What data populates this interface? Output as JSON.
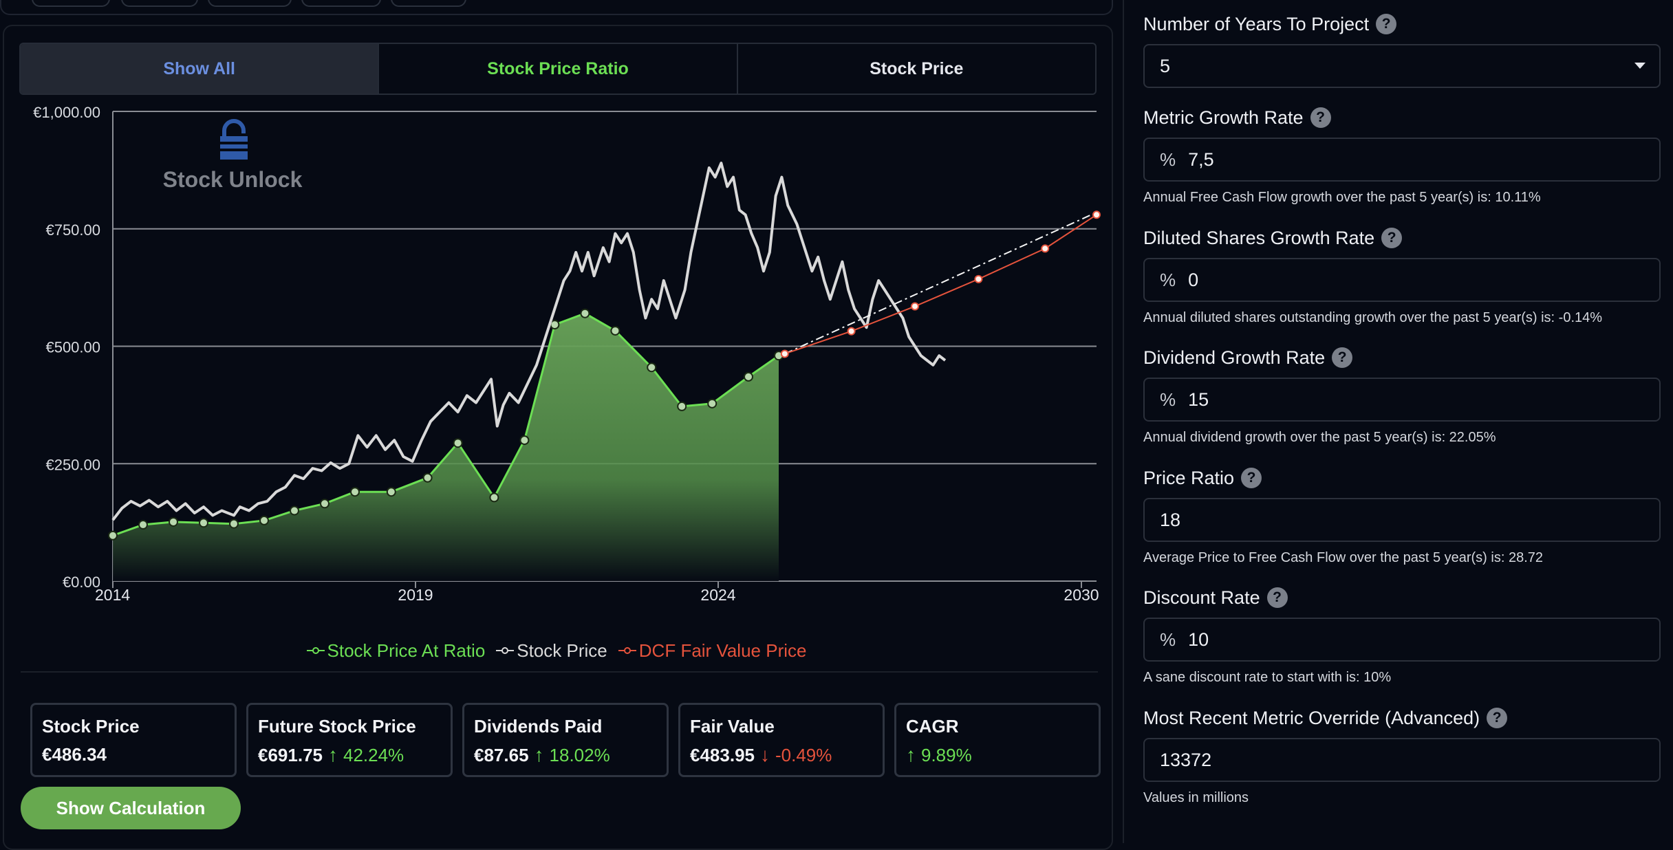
{
  "tabs": [
    {
      "label": "Show All",
      "color": "#6b8fe0"
    },
    {
      "label": "Stock Price Ratio",
      "color": "#6cdf54"
    },
    {
      "label": "Stock Price",
      "color": "#e6e8ee"
    }
  ],
  "logo": {
    "text": "Stock Unlock"
  },
  "legend": [
    {
      "label": "Stock Price At Ratio",
      "color": "#6cdf54"
    },
    {
      "label": "Stock Price",
      "color": "#d9d9d9"
    },
    {
      "label": "DCF Fair Value Price",
      "color": "#e5533c"
    }
  ],
  "chart_data": {
    "type": "line",
    "x_ticks": [
      2014,
      2019,
      2024,
      2030
    ],
    "xlim": [
      2014,
      2030.25
    ],
    "y_ticks": [
      "€0.00",
      "€250.00",
      "€500.00",
      "€750.00",
      "€1,000.00"
    ],
    "y_tick_values": [
      0,
      250,
      500,
      750,
      1000
    ],
    "ylim": [
      0,
      1000
    ],
    "grid": "horizontal",
    "legend_position": "bottom",
    "series": [
      {
        "name": "Stock Price At Ratio",
        "type": "area",
        "color": "#6cdf54",
        "points": [
          [
            2014.0,
            97
          ],
          [
            2014.5,
            120
          ],
          [
            2015.0,
            126
          ],
          [
            2015.5,
            124
          ],
          [
            2016.0,
            122
          ],
          [
            2016.5,
            129
          ],
          [
            2017.0,
            150
          ],
          [
            2017.5,
            165
          ],
          [
            2018.0,
            190
          ],
          [
            2018.6,
            190
          ],
          [
            2019.2,
            220
          ],
          [
            2019.7,
            294
          ],
          [
            2020.3,
            178
          ],
          [
            2020.8,
            300
          ],
          [
            2021.3,
            546
          ],
          [
            2021.8,
            570
          ],
          [
            2022.3,
            533
          ],
          [
            2022.9,
            455
          ],
          [
            2023.4,
            372
          ],
          [
            2023.9,
            378
          ],
          [
            2024.5,
            435
          ],
          [
            2025.0,
            480
          ]
        ]
      },
      {
        "name": "Stock Price",
        "type": "line",
        "color": "#d9d9d9",
        "points": [
          [
            2014.0,
            130
          ],
          [
            2014.15,
            155
          ],
          [
            2014.3,
            170
          ],
          [
            2014.45,
            160
          ],
          [
            2014.6,
            172
          ],
          [
            2014.75,
            158
          ],
          [
            2014.9,
            170
          ],
          [
            2015.05,
            150
          ],
          [
            2015.2,
            165
          ],
          [
            2015.35,
            145
          ],
          [
            2015.5,
            158
          ],
          [
            2015.65,
            140
          ],
          [
            2015.8,
            150
          ],
          [
            2016.0,
            140
          ],
          [
            2016.1,
            158
          ],
          [
            2016.25,
            150
          ],
          [
            2016.4,
            165
          ],
          [
            2016.55,
            170
          ],
          [
            2016.7,
            190
          ],
          [
            2016.85,
            200
          ],
          [
            2017.0,
            225
          ],
          [
            2017.15,
            218
          ],
          [
            2017.3,
            240
          ],
          [
            2017.45,
            235
          ],
          [
            2017.6,
            252
          ],
          [
            2017.75,
            240
          ],
          [
            2017.9,
            250
          ],
          [
            2018.05,
            310
          ],
          [
            2018.2,
            285
          ],
          [
            2018.35,
            310
          ],
          [
            2018.5,
            280
          ],
          [
            2018.65,
            300
          ],
          [
            2018.8,
            265
          ],
          [
            2018.95,
            255
          ],
          [
            2019.1,
            300
          ],
          [
            2019.25,
            340
          ],
          [
            2019.4,
            360
          ],
          [
            2019.55,
            380
          ],
          [
            2019.7,
            360
          ],
          [
            2019.85,
            395
          ],
          [
            2020.0,
            380
          ],
          [
            2020.15,
            410
          ],
          [
            2020.25,
            430
          ],
          [
            2020.35,
            330
          ],
          [
            2020.45,
            375
          ],
          [
            2020.55,
            400
          ],
          [
            2020.7,
            380
          ],
          [
            2020.85,
            420
          ],
          [
            2021.0,
            460
          ],
          [
            2021.15,
            520
          ],
          [
            2021.3,
            580
          ],
          [
            2021.45,
            640
          ],
          [
            2021.55,
            660
          ],
          [
            2021.65,
            700
          ],
          [
            2021.75,
            660
          ],
          [
            2021.85,
            700
          ],
          [
            2021.95,
            650
          ],
          [
            2022.1,
            710
          ],
          [
            2022.2,
            680
          ],
          [
            2022.3,
            740
          ],
          [
            2022.4,
            720
          ],
          [
            2022.5,
            740
          ],
          [
            2022.6,
            700
          ],
          [
            2022.7,
            620
          ],
          [
            2022.8,
            560
          ],
          [
            2022.9,
            600
          ],
          [
            2023.0,
            580
          ],
          [
            2023.1,
            640
          ],
          [
            2023.2,
            600
          ],
          [
            2023.3,
            560
          ],
          [
            2023.45,
            620
          ],
          [
            2023.55,
            700
          ],
          [
            2023.65,
            760
          ],
          [
            2023.75,
            820
          ],
          [
            2023.85,
            880
          ],
          [
            2023.95,
            860
          ],
          [
            2024.05,
            890
          ],
          [
            2024.15,
            840
          ],
          [
            2024.25,
            860
          ],
          [
            2024.35,
            790
          ],
          [
            2024.45,
            780
          ],
          [
            2024.55,
            740
          ],
          [
            2024.65,
            710
          ],
          [
            2024.75,
            660
          ],
          [
            2024.85,
            700
          ],
          [
            2024.95,
            820
          ],
          [
            2025.05,
            860
          ],
          [
            2025.15,
            800
          ],
          [
            2025.3,
            760
          ],
          [
            2025.45,
            700
          ],
          [
            2025.55,
            660
          ],
          [
            2025.65,
            690
          ],
          [
            2025.75,
            640
          ],
          [
            2025.85,
            600
          ],
          [
            2025.95,
            640
          ],
          [
            2026.05,
            680
          ],
          [
            2026.15,
            620
          ],
          [
            2026.25,
            580
          ],
          [
            2026.35,
            560
          ],
          [
            2026.45,
            540
          ],
          [
            2026.55,
            600
          ],
          [
            2026.65,
            640
          ],
          [
            2026.75,
            620
          ],
          [
            2026.85,
            600
          ],
          [
            2026.95,
            580
          ],
          [
            2027.05,
            560
          ],
          [
            2027.15,
            520
          ],
          [
            2027.25,
            500
          ],
          [
            2027.35,
            480
          ],
          [
            2027.45,
            470
          ],
          [
            2027.55,
            460
          ],
          [
            2027.65,
            480
          ],
          [
            2027.75,
            470
          ]
        ]
      },
      {
        "name": "DCF Fair Value Price",
        "type": "line",
        "color": "#e5533c",
        "points": [
          [
            2025.1,
            483.95
          ],
          [
            2026.2,
            532
          ],
          [
            2027.25,
            585
          ],
          [
            2028.3,
            643
          ],
          [
            2029.4,
            708
          ],
          [
            2030.25,
            780
          ]
        ]
      },
      {
        "name": "",
        "type": "dashdot",
        "color": "#f5f5f5",
        "points": [
          [
            2025.1,
            483.95
          ],
          [
            2030.25,
            785
          ]
        ]
      }
    ]
  },
  "cards": [
    {
      "title": "Stock Price",
      "value": "€486.34",
      "change": "",
      "direction": ""
    },
    {
      "title": "Future Stock Price",
      "value": "€691.75",
      "change": "42.24%",
      "direction": "up"
    },
    {
      "title": "Dividends Paid",
      "value": "€87.65",
      "change": "18.02%",
      "direction": "up"
    },
    {
      "title": "Fair Value",
      "value": "€483.95",
      "change": "-0.49%",
      "direction": "down"
    },
    {
      "title": "CAGR",
      "value": "",
      "change": "9.89%",
      "direction": "up"
    }
  ],
  "show_calculation_label": "Show Calculation",
  "fields": [
    {
      "label": "Number of Years To Project",
      "prefix": "",
      "value": "5",
      "hint": "",
      "type": "select"
    },
    {
      "label": "Metric Growth Rate",
      "prefix": "%",
      "value": "7,5",
      "hint": "Annual Free Cash Flow growth over the past 5 year(s) is: 10.11%",
      "type": "input"
    },
    {
      "label": "Diluted Shares Growth Rate",
      "prefix": "%",
      "value": "0",
      "hint": "Annual diluted shares outstanding growth over the past 5 year(s) is: -0.14%",
      "type": "input"
    },
    {
      "label": "Dividend Growth Rate",
      "prefix": "%",
      "value": "15",
      "hint": "Annual dividend growth over the past 5 year(s) is: 22.05%",
      "type": "input"
    },
    {
      "label": "Price Ratio",
      "prefix": "",
      "value": "18",
      "hint": "Average Price to Free Cash Flow over the past 5 year(s) is: 28.72",
      "type": "input"
    },
    {
      "label": "Discount Rate",
      "prefix": "%",
      "value": "10",
      "hint": "A sane discount rate to start with is: 10%",
      "type": "input"
    },
    {
      "label": "Most Recent Metric Override (Advanced)",
      "prefix": "",
      "value": "13372",
      "hint": "Values in millions",
      "type": "input"
    }
  ],
  "help_icon_glyph": "?",
  "arrow_glyphs": {
    "up": "↑",
    "down": "↓"
  }
}
